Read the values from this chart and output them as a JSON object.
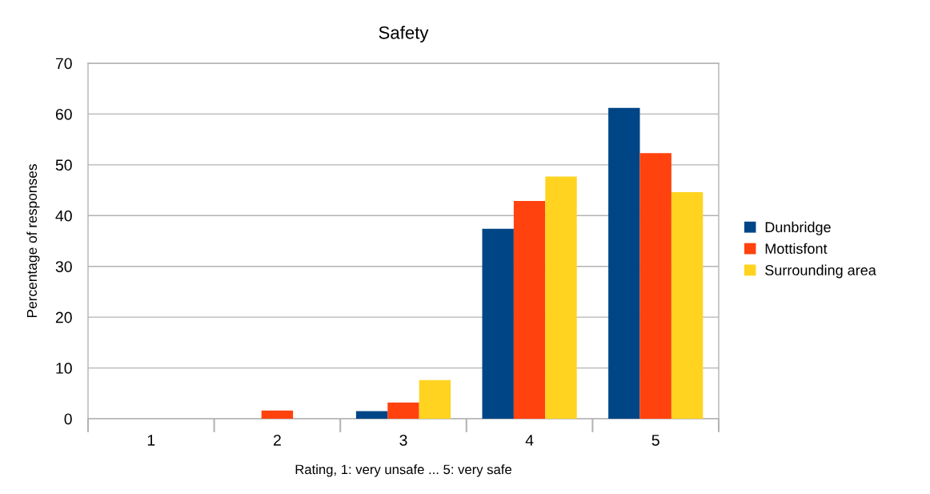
{
  "chart_data": {
    "type": "bar",
    "title": "Safety",
    "xlabel": "Rating, 1: very unsafe ... 5: very safe",
    "ylabel": "Percentage of responses",
    "categories": [
      "1",
      "2",
      "3",
      "4",
      "5"
    ],
    "series": [
      {
        "name": "Dunbridge",
        "color": "#004586",
        "values": [
          0,
          0,
          1.5,
          37.4,
          61.2
        ]
      },
      {
        "name": "Mottisfont",
        "color": "#ff420e",
        "values": [
          0,
          1.6,
          3.2,
          42.9,
          52.3
        ]
      },
      {
        "name": "Surrounding area",
        "color": "#ffd320",
        "values": [
          0,
          0,
          7.6,
          47.7,
          44.6
        ]
      }
    ],
    "ylim": [
      0,
      70
    ],
    "yticks": [
      0,
      10,
      20,
      30,
      40,
      50,
      60,
      70
    ],
    "grid": "y",
    "legend": "right"
  }
}
